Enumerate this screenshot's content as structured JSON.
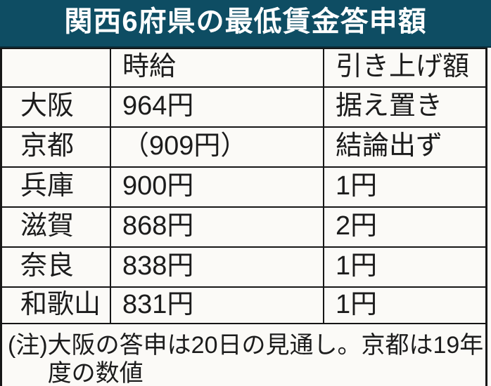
{
  "chart_data": {
    "type": "table",
    "title": "関西6府県の最低賃金答申額",
    "columns": [
      "",
      "時給",
      "引き上げ額"
    ],
    "rows": [
      [
        "大阪",
        "964円",
        "据え置き"
      ],
      [
        "京都",
        "（909円）",
        "結論出ず"
      ],
      [
        "兵庫",
        "900円",
        "1円"
      ],
      [
        "滋賀",
        "868円",
        "2円"
      ],
      [
        "奈良",
        "838円",
        "1円"
      ],
      [
        "和歌山",
        "831円",
        "1円"
      ]
    ],
    "note": "(注)大阪の答申は20日の見通し。京都は19年度の数値"
  },
  "header": {
    "title": "関西6府県の最低賃金答申額"
  },
  "table": {
    "col_region": "",
    "col_wage": "時給",
    "col_raise": "引き上げ額",
    "rows": [
      {
        "region": "大阪",
        "wage": "964円",
        "raise": "据え置き"
      },
      {
        "region": "京都",
        "wage": "（909円）",
        "raise": "結論出ず"
      },
      {
        "region": "兵庫",
        "wage": "900円",
        "raise": "1円"
      },
      {
        "region": "滋賀",
        "wage": "868円",
        "raise": "2円"
      },
      {
        "region": "奈良",
        "wage": "838円",
        "raise": "1円"
      },
      {
        "region": "和歌山",
        "wage": "831円",
        "raise": "1円"
      }
    ]
  },
  "note": {
    "prefix": "(注)",
    "line1": "大阪の答申は20日の見通し。京都は19年",
    "line2": "度の数値"
  },
  "colors": {
    "title_bg": "#0e4d63",
    "title_text": "#ffffff",
    "border": "#161616",
    "background": "#fbfaf7",
    "text": "#1c1c1c"
  }
}
